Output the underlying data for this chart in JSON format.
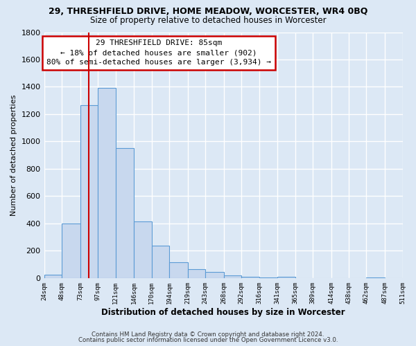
{
  "title_line1": "29, THRESHFIELD DRIVE, HOME MEADOW, WORCESTER, WR4 0BQ",
  "title_line2": "Size of property relative to detached houses in Worcester",
  "xlabel": "Distribution of detached houses by size in Worcester",
  "ylabel": "Number of detached properties",
  "bar_values": [
    25,
    400,
    1265,
    1390,
    950,
    415,
    235,
    115,
    65,
    45,
    20,
    10,
    5,
    10,
    0,
    0,
    0,
    0,
    5,
    0
  ],
  "bin_edges": [
    24,
    48,
    73,
    97,
    121,
    146,
    170,
    194,
    219,
    243,
    268,
    292,
    316,
    341,
    365,
    389,
    414,
    438,
    462,
    487,
    511
  ],
  "tick_labels": [
    "24sqm",
    "48sqm",
    "73sqm",
    "97sqm",
    "121sqm",
    "146sqm",
    "170sqm",
    "194sqm",
    "219sqm",
    "243sqm",
    "268sqm",
    "292sqm",
    "316sqm",
    "341sqm",
    "365sqm",
    "389sqm",
    "414sqm",
    "438sqm",
    "462sqm",
    "487sqm",
    "511sqm"
  ],
  "bar_color": "#c8d8ee",
  "bar_edge_color": "#5b9bd5",
  "vline_x": 85,
  "vline_color": "#cc0000",
  "ylim": [
    0,
    1800
  ],
  "yticks": [
    0,
    200,
    400,
    600,
    800,
    1000,
    1200,
    1400,
    1600,
    1800
  ],
  "annotation_title": "29 THRESHFIELD DRIVE: 85sqm",
  "annotation_line1": "← 18% of detached houses are smaller (902)",
  "annotation_line2": "80% of semi-detached houses are larger (3,934) →",
  "annotation_box_color": "#ffffff",
  "annotation_box_edge": "#cc0000",
  "footer_line1": "Contains HM Land Registry data © Crown copyright and database right 2024.",
  "footer_line2": "Contains public sector information licensed under the Open Government Licence v3.0.",
  "background_color": "#dce8f5",
  "plot_bg_color": "#dce8f5",
  "grid_color": "#ffffff"
}
